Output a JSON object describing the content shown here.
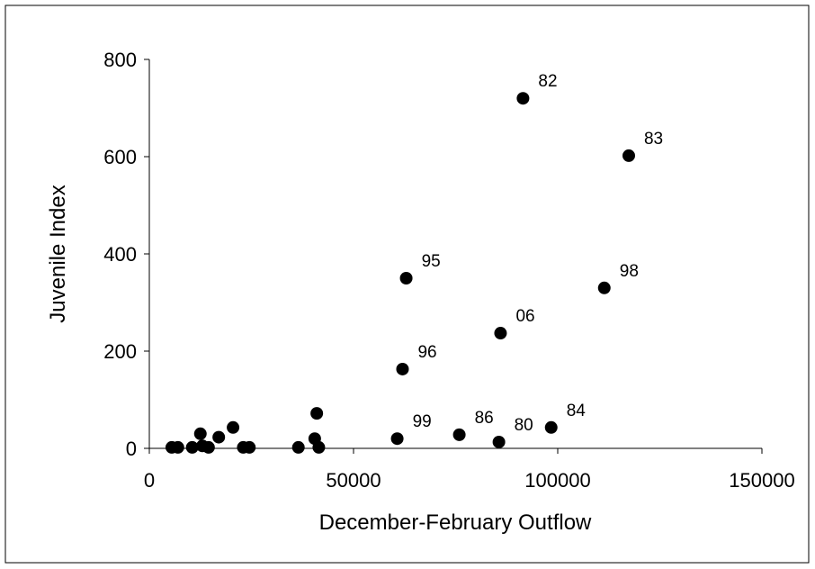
{
  "chart_data": {
    "type": "scatter",
    "x_label": "December-February Outflow",
    "y_label": "Juvenile Index",
    "x": [
      91500,
      117400,
      62900,
      111400,
      86000,
      62000,
      60700,
      75900,
      85600,
      98400,
      5500,
      7000,
      10500,
      12500,
      13000,
      14500,
      17000,
      20500,
      23000,
      24500,
      36500,
      40500,
      41000,
      41500
    ],
    "values": [
      720,
      602,
      350,
      330,
      237,
      163,
      20,
      28,
      13,
      43,
      2,
      2,
      2,
      30,
      5,
      2,
      23,
      43,
      2,
      2,
      2,
      20,
      72,
      2
    ],
    "point_labels": [
      "82",
      "83",
      "95",
      "98",
      "06",
      "96",
      "99",
      "86",
      "80",
      "84",
      null,
      null,
      null,
      null,
      null,
      null,
      null,
      null,
      null,
      null,
      null,
      null,
      null,
      null
    ],
    "color": "#000000",
    "xlim": [
      0,
      150000
    ],
    "xticks": [
      0,
      50000,
      100000,
      150000
    ],
    "ylim": [
      0,
      800
    ],
    "yticks": [
      0,
      200,
      400,
      600,
      800
    ]
  }
}
